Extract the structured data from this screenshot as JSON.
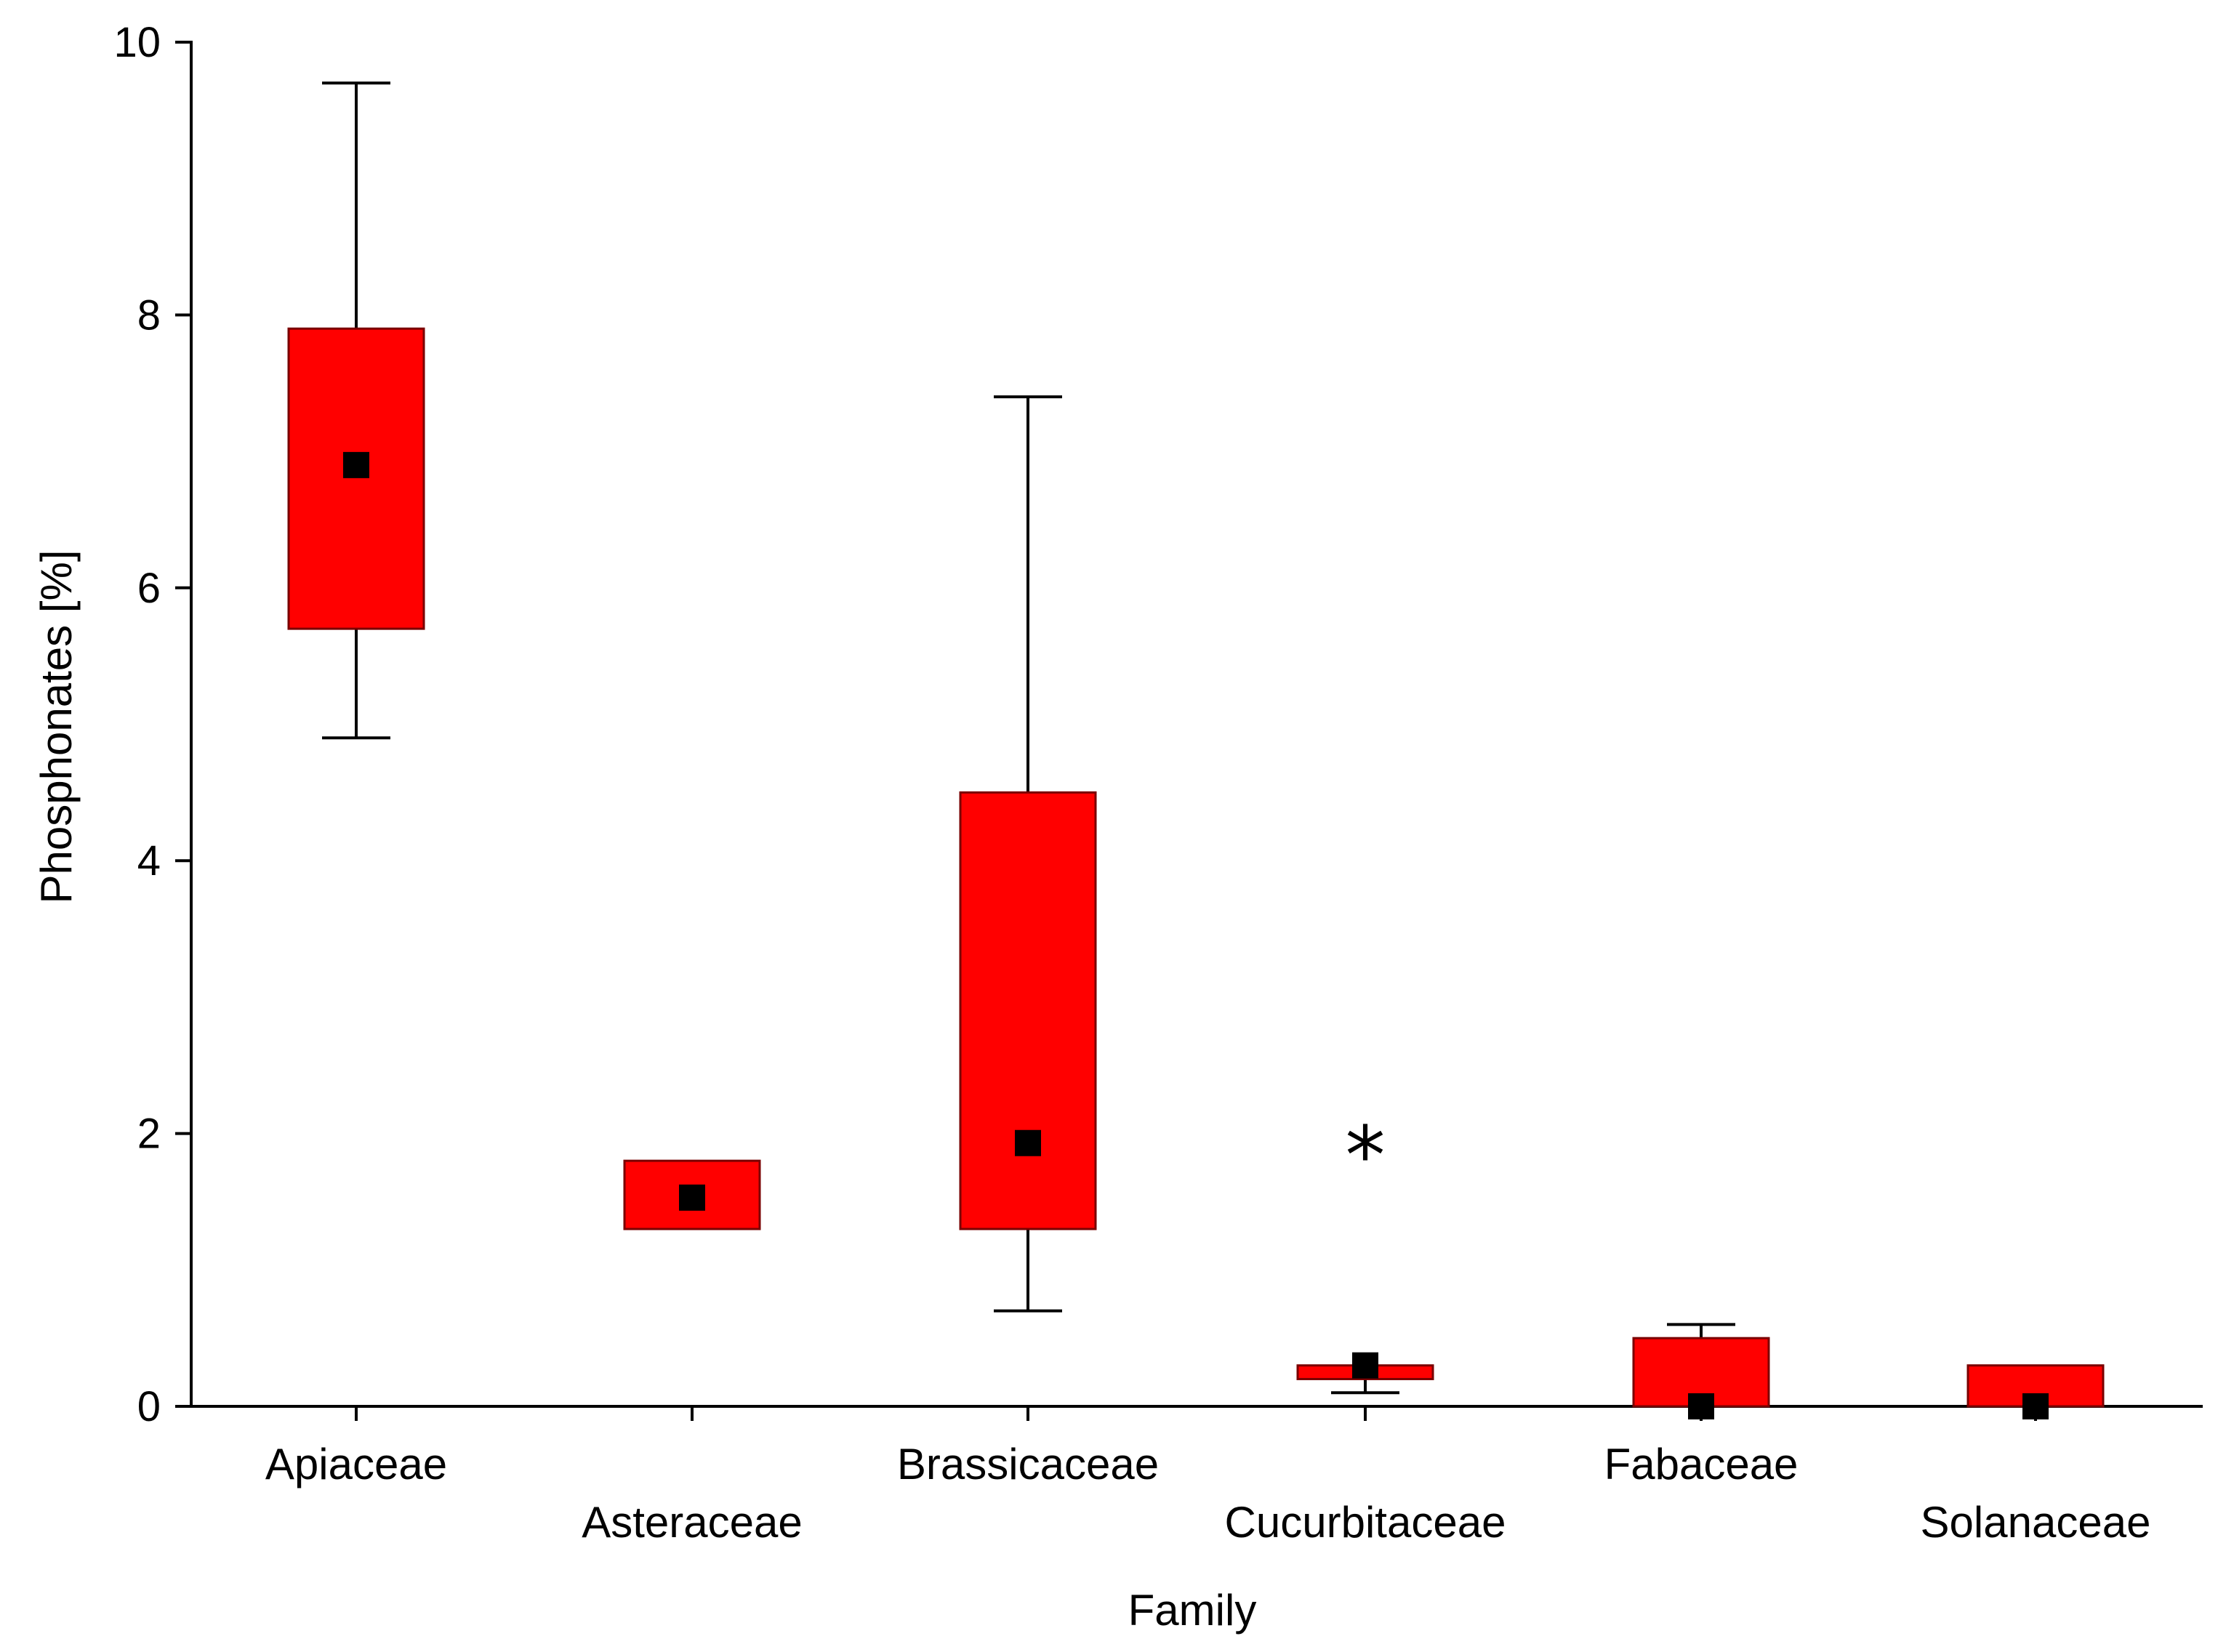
{
  "chart_data": {
    "type": "boxplot",
    "xlabel": "Family",
    "ylabel": "Phosphonates [%]",
    "ylim": [
      0,
      10
    ],
    "yticks": [
      0,
      2,
      4,
      6,
      8,
      10
    ],
    "grid": false,
    "box_color": "#ff0000",
    "marker_color": "#000000",
    "categories": [
      "Apiaceae",
      "Asteraceae",
      "Brassicaceae",
      "Cucurbitaceae",
      "Fabaceae",
      "Solanaceae"
    ],
    "series": [
      {
        "name": "Apiaceae",
        "whisker_low": 4.9,
        "q1": 5.7,
        "median": 6.9,
        "q3": 7.9,
        "whisker_high": 9.7
      },
      {
        "name": "Asteraceae",
        "whisker_low": 1.3,
        "q1": 1.3,
        "median": 1.53,
        "q3": 1.8,
        "whisker_high": 1.8
      },
      {
        "name": "Brassicaceae",
        "whisker_low": 0.7,
        "q1": 1.3,
        "median": 1.93,
        "q3": 4.5,
        "whisker_high": 7.4
      },
      {
        "name": "Cucurbitaceae",
        "whisker_low": 0.1,
        "q1": 0.2,
        "median": 0.3,
        "q3": 0.3,
        "whisker_high": 0.3,
        "outlier": 1.85,
        "outlier_symbol": "*"
      },
      {
        "name": "Fabaceae",
        "whisker_low": 0.0,
        "q1": 0.0,
        "median": 0.0,
        "q3": 0.5,
        "whisker_high": 0.6
      },
      {
        "name": "Solanaceae",
        "whisker_low": 0.0,
        "q1": 0.0,
        "median": 0.0,
        "q3": 0.3,
        "whisker_high": 0.3
      }
    ]
  }
}
